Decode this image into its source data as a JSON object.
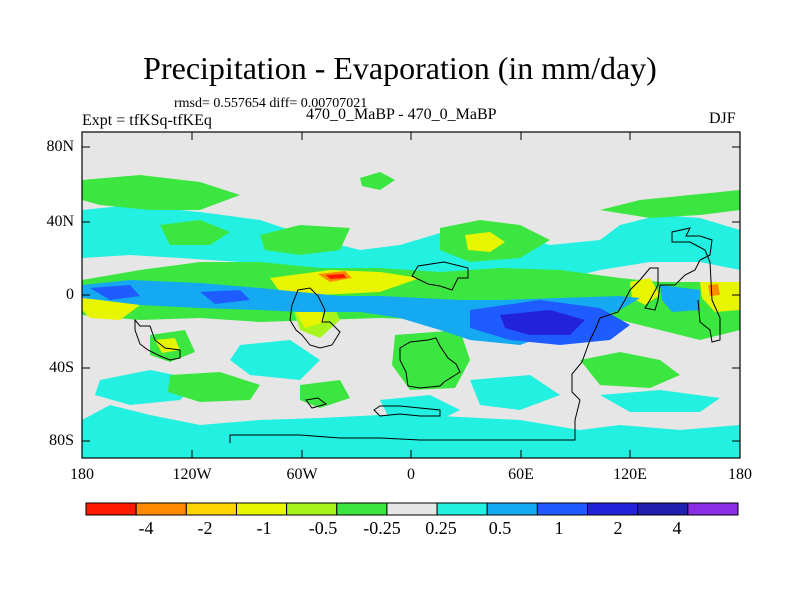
{
  "title": "Precipitation - Evaporation (in mm/day)",
  "stats": "rmsd= 0.557654 diff= 0.00707021",
  "expt": "Expt = tfKSq-tfKEq",
  "case_name": "470_0_MaBP - 470_0_MaBP",
  "season": "DJF",
  "y_axis_labels": [
    "80N",
    "40N",
    "0",
    "40S",
    "80S"
  ],
  "x_axis_labels": [
    "180",
    "120W",
    "60W",
    "0",
    "60E",
    "120E",
    "180"
  ],
  "colorbar": {
    "labels": [
      "-4",
      "-2",
      "-1",
      "-0.5",
      "-0.25",
      "0.25",
      "0.5",
      "1",
      "2",
      "4"
    ],
    "colors": [
      "#ff1a00",
      "#ff8c00",
      "#ffd400",
      "#e8f500",
      "#a8f51e",
      "#3ce640",
      "#e6e6e6",
      "#22f0e0",
      "#14a9f0",
      "#1f5cff",
      "#2222d8",
      "#2020b0",
      "#8a2ee6"
    ]
  },
  "map_palette": {
    "background": "#e6e6e6",
    "light_green": "#a8f51e",
    "green": "#3ce640",
    "yellow": "#e8f500",
    "gold": "#ffd400",
    "orange": "#ff8c00",
    "red": "#ff1a00",
    "cyan": "#22f0e0",
    "sky": "#14a9f0",
    "blue": "#1f5cff",
    "dark_blue": "#2222d8"
  }
}
